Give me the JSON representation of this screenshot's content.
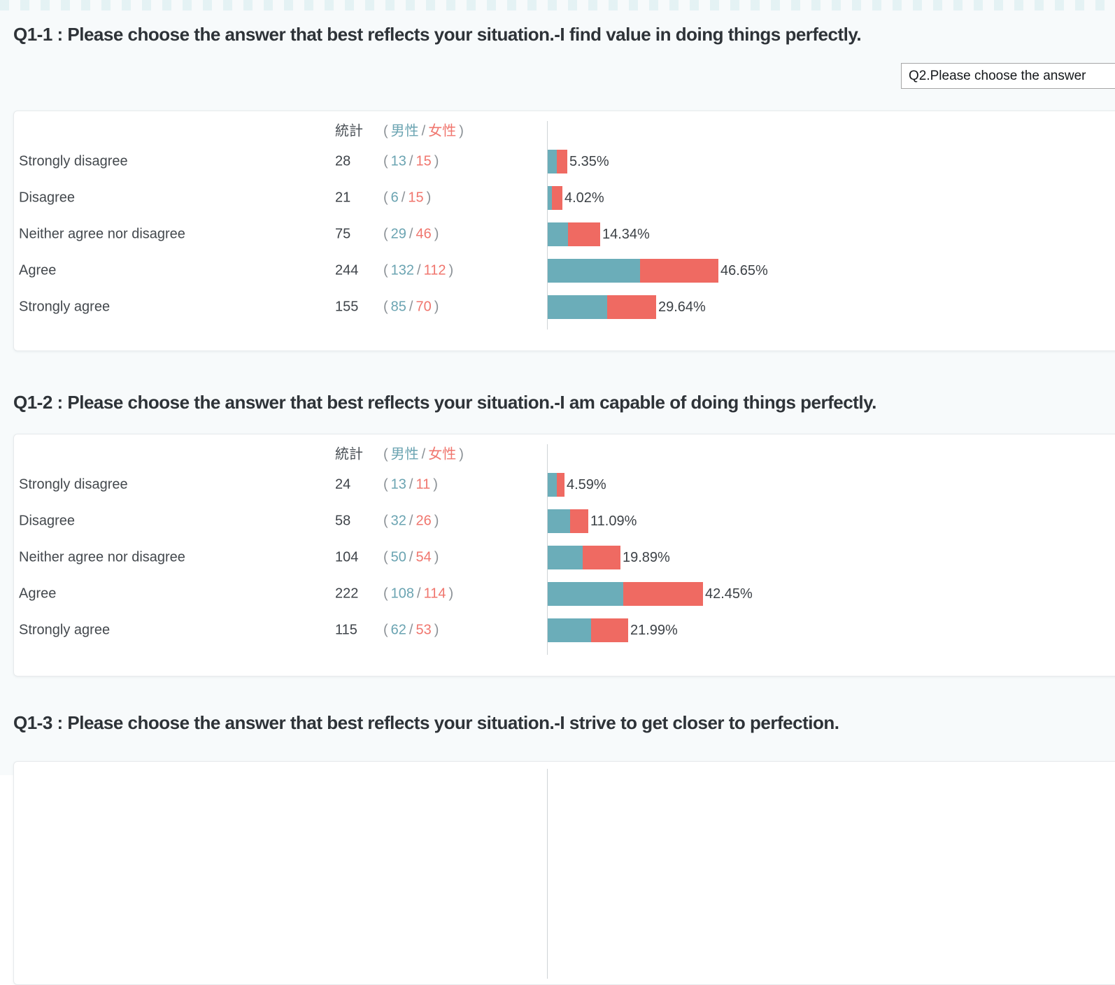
{
  "colors": {
    "male_bar": "#6badb9",
    "female_bar": "#ef6a62",
    "male_text": "#6ba4b2",
    "female_text": "#f0766e"
  },
  "q2_button": {
    "label": "Q2.Please choose the answer"
  },
  "table_header": {
    "total": "統計"
  },
  "gender_labels": {
    "male": "男性",
    "female": "女性"
  },
  "punct": {
    "open": "(",
    "slash": "/",
    "close": ")"
  },
  "chart_data": [
    {
      "type": "bar",
      "orientation": "horizontal",
      "stacked": true,
      "grid": false,
      "legend_position": "table-header",
      "title": "Q1-1 : Please choose the answer that best reflects your situation.-I find value in doing things perfectly.",
      "categories": [
        "Strongly disagree",
        "Disagree",
        "Neither agree nor disagree",
        "Agree",
        "Strongly agree"
      ],
      "series": [
        {
          "name": "男性",
          "values": [
            13,
            6,
            29,
            132,
            85
          ]
        },
        {
          "name": "女性",
          "values": [
            15,
            15,
            46,
            112,
            70
          ]
        }
      ],
      "totals": [
        28,
        21,
        75,
        244,
        155
      ],
      "percent_labels": [
        "5.35%",
        "4.02%",
        "14.34%",
        "46.65%",
        "29.64%"
      ]
    },
    {
      "type": "bar",
      "orientation": "horizontal",
      "stacked": true,
      "grid": false,
      "legend_position": "table-header",
      "title": "Q1-2 : Please choose the answer that best reflects your situation.-I am capable of doing things perfectly.",
      "categories": [
        "Strongly disagree",
        "Disagree",
        "Neither agree nor disagree",
        "Agree",
        "Strongly agree"
      ],
      "series": [
        {
          "name": "男性",
          "values": [
            13,
            32,
            50,
            108,
            62
          ]
        },
        {
          "name": "女性",
          "values": [
            11,
            26,
            54,
            114,
            53
          ]
        }
      ],
      "totals": [
        24,
        58,
        104,
        222,
        115
      ],
      "percent_labels": [
        "4.59%",
        "11.09%",
        "19.89%",
        "42.45%",
        "21.99%"
      ]
    },
    {
      "type": "bar",
      "orientation": "horizontal",
      "stacked": true,
      "clipped": true,
      "title": "Q1-3 : Please choose the answer that best reflects your situation.-I strive to get closer to perfection.",
      "categories": [],
      "series": [],
      "totals": [],
      "percent_labels": []
    }
  ]
}
